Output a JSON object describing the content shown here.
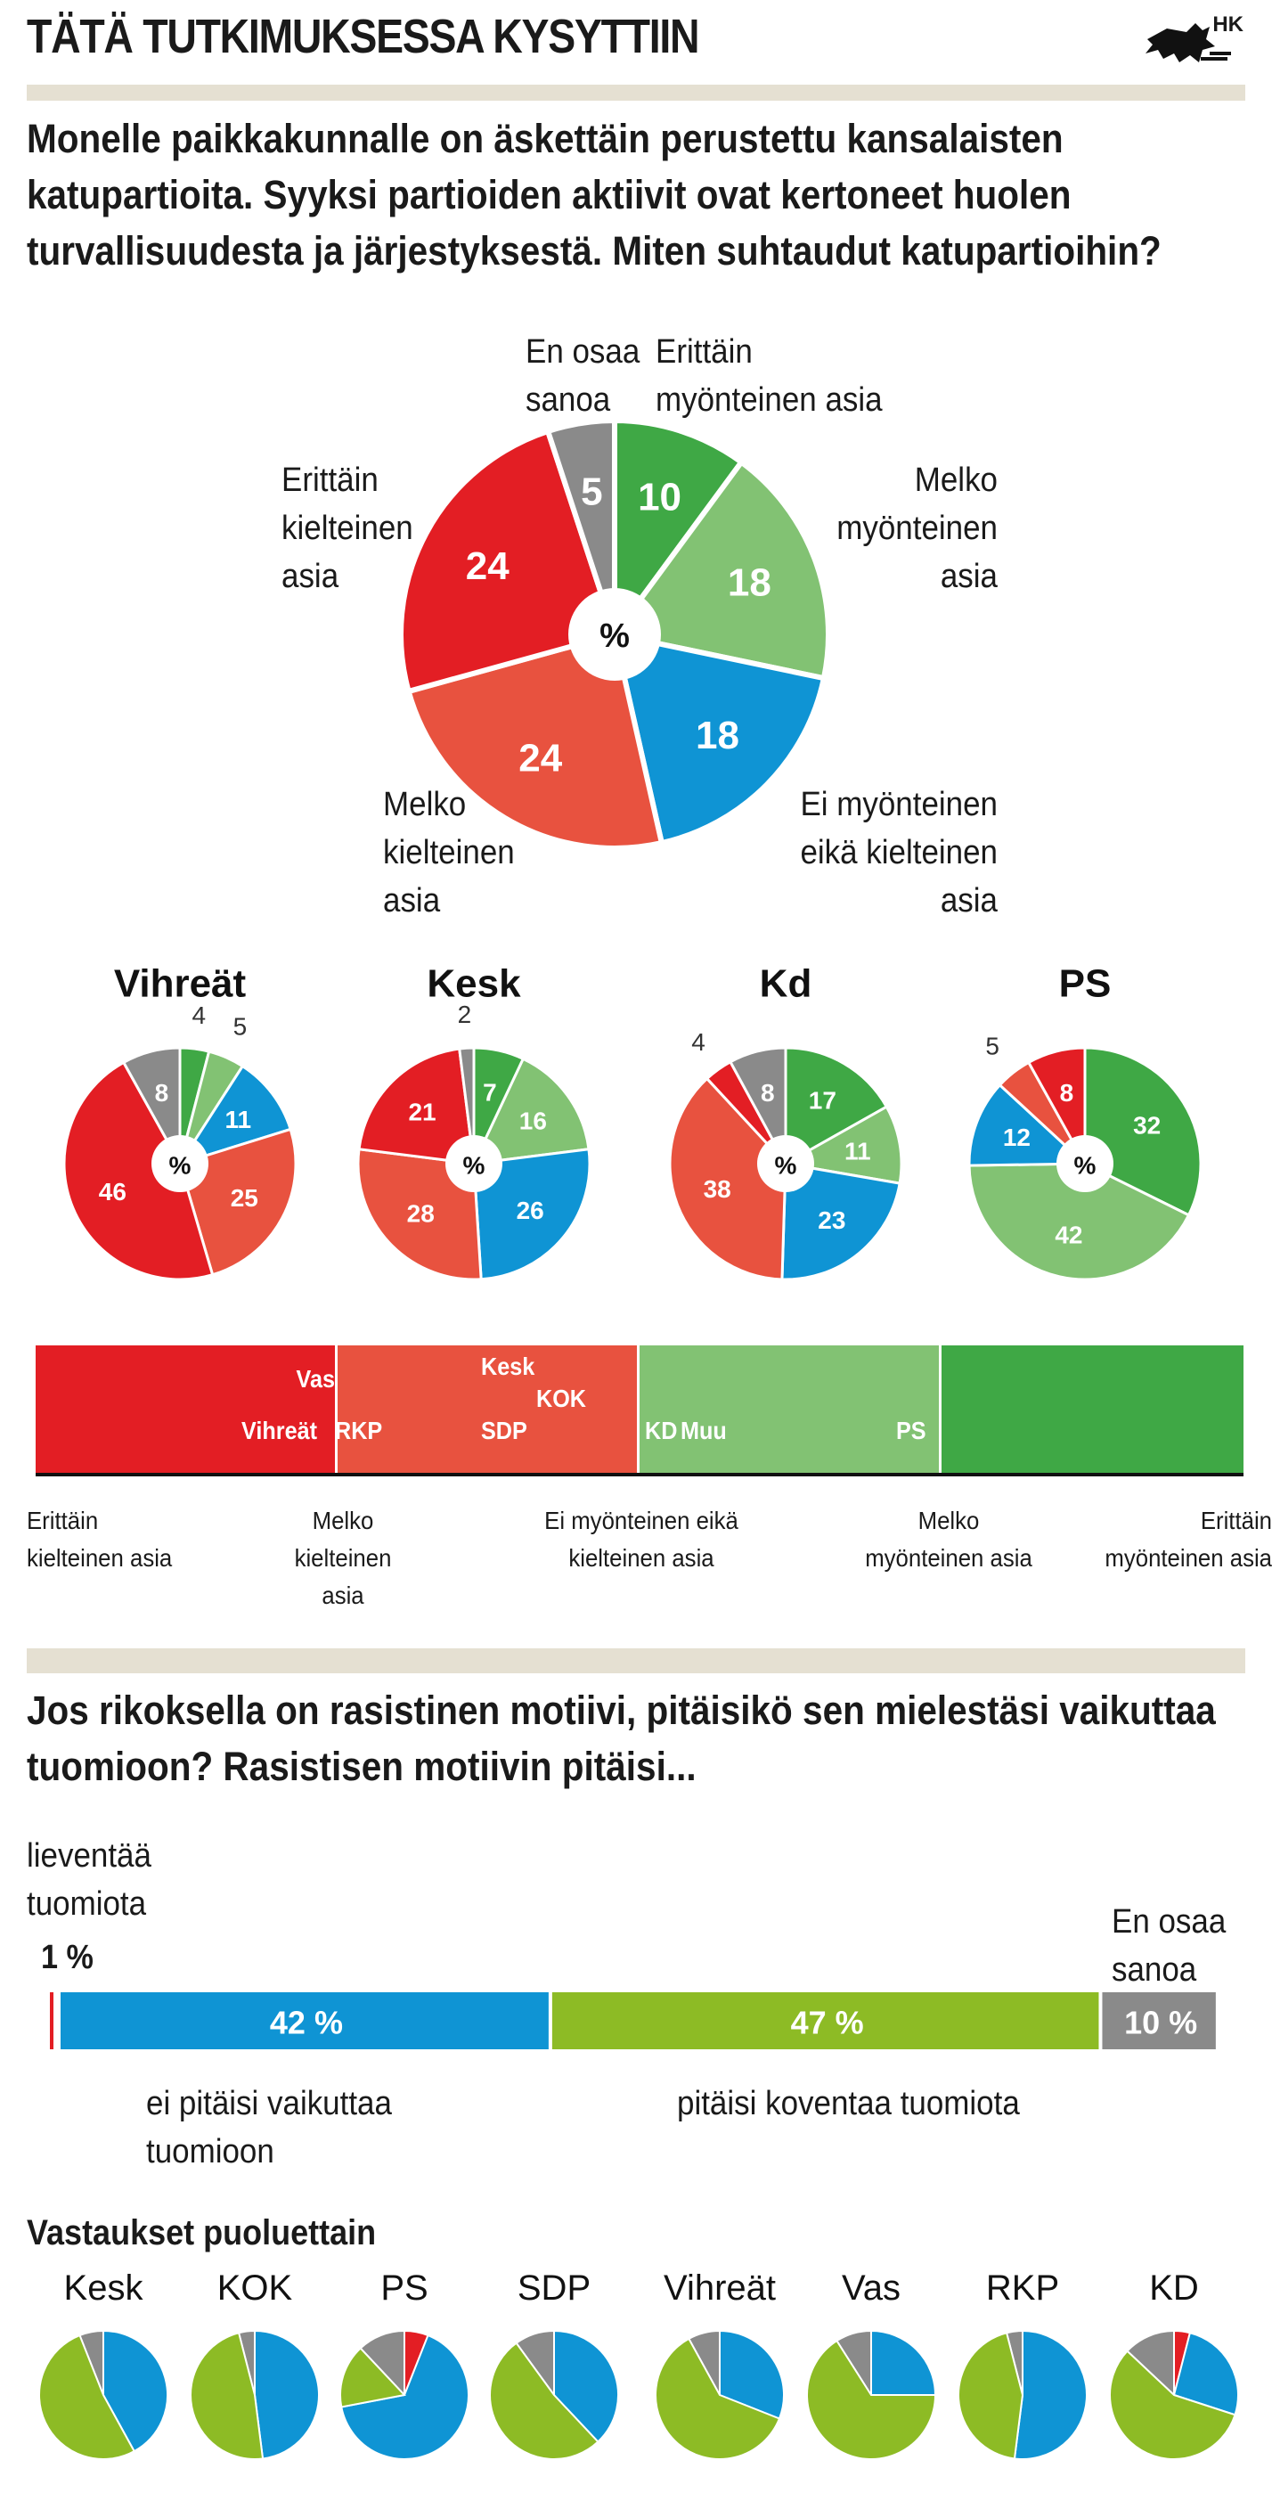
{
  "header": {
    "title": "TÄTÄ TUTKIMUKSESSA KYSYTTIIN",
    "logo_text": "HK"
  },
  "question1": {
    "lines": [
      "Monelle paikkakunnalle on äskettäin perustettu kansalaisten",
      "katupartioita. Syyksi partioiden aktiivit ovat kertoneet huolen",
      "turvallisuudesta ja järjestyksestä. Miten suhtaudut katupartioihin?"
    ],
    "labels": {
      "en_osaa": [
        "En osaa",
        "sanoa"
      ],
      "erittain_myont": [
        "Erittäin",
        "myönteinen asia"
      ],
      "melko_myont": [
        "Melko",
        "myönteinen",
        "asia"
      ],
      "ei_myont": [
        "Ei myönteinen",
        "eikä kielteinen",
        "asia"
      ],
      "melko_kielt": [
        "Melko",
        "kielteinen",
        "asia"
      ],
      "erittain_kielt": [
        "Erittäin",
        "kielteinen",
        "asia"
      ]
    }
  },
  "scale": {
    "labels": [
      [
        "Erittäin",
        "kielteinen asia"
      ],
      [
        "Melko",
        "kielteinen asia"
      ],
      [
        "Ei myönteinen eikä",
        "kielteinen asia"
      ],
      [
        "Melko",
        "myönteinen asia"
      ],
      [
        "Erittäin",
        "myönteinen asia"
      ]
    ],
    "markers": [
      "Vas",
      "Vihreät",
      "RKP",
      "Kesk",
      "KOK",
      "SDP",
      "KD",
      "Muu",
      "PS"
    ]
  },
  "question2": {
    "lines": [
      "Jos rikoksella on rasistinen motiivi, pitäisikö sen mielestäsi vaikuttaa",
      "tuomioon? Rasistisen motiivin pitäisi..."
    ],
    "lieventaa": [
      "lieventää",
      "tuomiota"
    ],
    "lieventaa_value": "1 %",
    "en_osaa": [
      "En osaa",
      "sanoa"
    ],
    "ei_pitaisi": [
      "ei pitäisi vaikuttaa",
      "tuomioon"
    ],
    "koventaa": "pitäisi koventaa tuomiota",
    "parties_title": "Vastaukset puoluettain"
  },
  "colors": {
    "green_dark": "#3fa845",
    "green_light": "#82c273",
    "blue": "#0f94d4",
    "red_light": "#e8523f",
    "red": "#e31e24",
    "grey": "#8a8a8a",
    "lime": "#8dbb25",
    "band": "#e5e0d2"
  },
  "chart_data": [
    {
      "type": "pie",
      "title": "",
      "center_label": "%",
      "categories": [
        "Erittäin myönteinen asia",
        "Melko myönteinen asia",
        "Ei myönteinen eikä kielteinen asia",
        "Melko kielteinen asia",
        "Erittäin kielteinen asia",
        "En osaa sanoa"
      ],
      "values": [
        10,
        18,
        18,
        24,
        24,
        5
      ],
      "colors": [
        "#3fa845",
        "#82c273",
        "#0f94d4",
        "#e8523f",
        "#e31e24",
        "#8a8a8a"
      ]
    },
    {
      "type": "pie",
      "title": "Vihreät",
      "center_label": "%",
      "categories": [
        "Erittäin myönteinen asia",
        "Melko myönteinen asia",
        "Ei myönteinen eikä kielteinen asia",
        "Melko kielteinen asia",
        "Erittäin kielteinen asia",
        "En osaa sanoa"
      ],
      "values": [
        4,
        5,
        11,
        25,
        46,
        8
      ]
    },
    {
      "type": "pie",
      "title": "Kesk",
      "center_label": "%",
      "categories": [
        "Erittäin myönteinen asia",
        "Melko myönteinen asia",
        "Ei myönteinen eikä kielteinen asia",
        "Melko kielteinen asia",
        "Erittäin kielteinen asia",
        "En osaa sanoa"
      ],
      "values": [
        7,
        16,
        26,
        28,
        21,
        2
      ]
    },
    {
      "type": "pie",
      "title": "Kd",
      "center_label": "%",
      "categories": [
        "Erittäin myönteinen asia",
        "Melko myönteinen asia",
        "Ei myönteinen eikä kielteinen asia",
        "Melko kielteinen asia",
        "Erittäin kielteinen asia",
        "En osaa sanoa"
      ],
      "values": [
        17,
        11,
        23,
        38,
        4,
        8
      ]
    },
    {
      "type": "pie",
      "title": "PS",
      "center_label": "%",
      "categories": [
        "Erittäin myönteinen asia",
        "Melko myönteinen asia",
        "Ei myönteinen eikä kielteinen asia",
        "Melko kielteinen asia",
        "Erittäin kielteinen asia"
      ],
      "values": [
        32,
        42,
        12,
        5,
        8
      ]
    },
    {
      "type": "bar",
      "title": "",
      "orientation": "horizontal-stacked",
      "categories": [
        "lieventää tuomiota",
        "ei pitäisi vaikuttaa tuomioon",
        "pitäisi koventaa tuomiota",
        "En osaa sanoa"
      ],
      "values": [
        1,
        42,
        47,
        10
      ],
      "value_labels": [
        "1 %",
        "42 %",
        "47 %",
        "10 %"
      ],
      "colors": [
        "#e31e24",
        "#0f94d4",
        "#8dbb25",
        "#8a8a8a"
      ]
    },
    {
      "type": "pie",
      "title": "Vastaukset puoluettain",
      "categories": [
        "lieventää tuomiota",
        "ei pitäisi vaikuttaa tuomioon",
        "pitäisi koventaa tuomiota",
        "En osaa sanoa"
      ],
      "charts": [
        {
          "name": "Kesk",
          "values": [
            0,
            42,
            52,
            6
          ]
        },
        {
          "name": "KOK",
          "values": [
            0,
            48,
            48,
            4
          ]
        },
        {
          "name": "PS",
          "values": [
            6,
            66,
            16,
            12
          ]
        },
        {
          "name": "SDP",
          "values": [
            0,
            38,
            52,
            10
          ]
        },
        {
          "name": "Vihreät",
          "values": [
            0,
            31,
            61,
            8
          ]
        },
        {
          "name": "Vas",
          "values": [
            0,
            25,
            66,
            9
          ]
        },
        {
          "name": "RKP",
          "values": [
            0,
            52,
            44,
            4
          ]
        },
        {
          "name": "KD",
          "values": [
            4,
            26,
            57,
            13
          ]
        }
      ]
    }
  ]
}
